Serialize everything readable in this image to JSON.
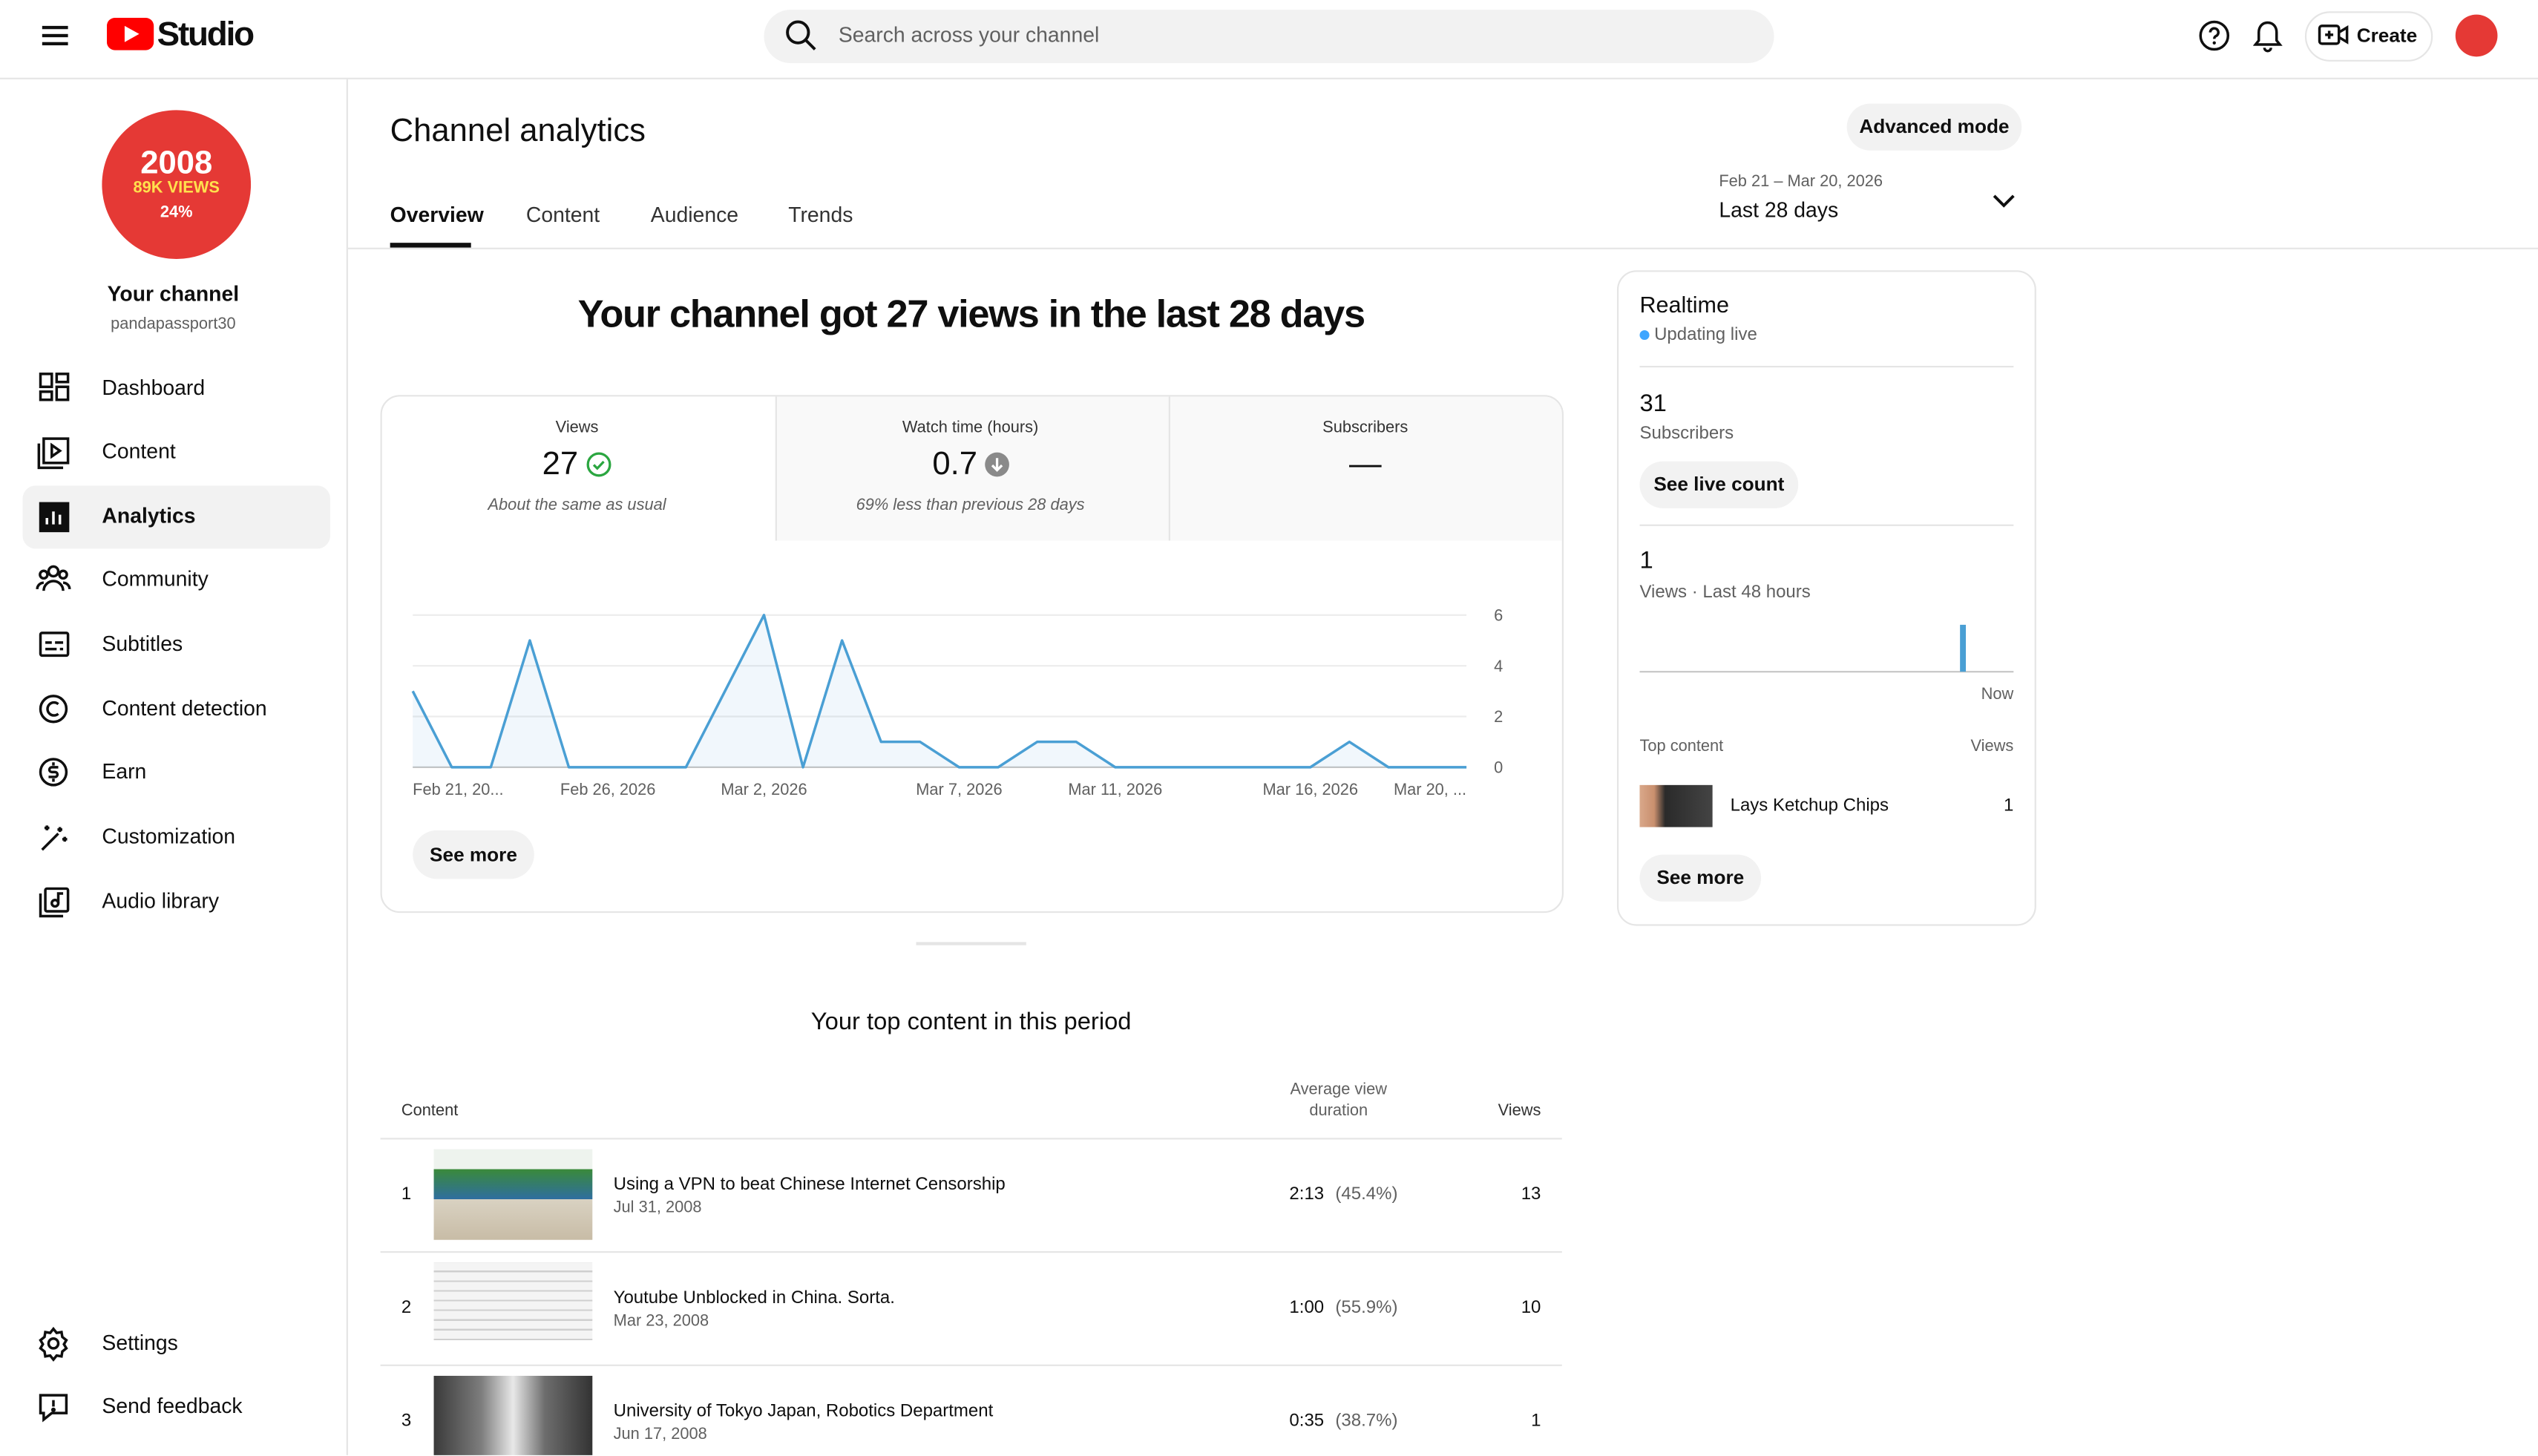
{
  "header": {
    "logo_text": "Studio",
    "search_placeholder": "Search across your channel",
    "create": "Create"
  },
  "sidebar": {
    "avatar": {
      "line1": "2008",
      "line2": "89K VIEWS",
      "line3": "24%"
    },
    "channel_title": "Your channel",
    "channel_handle": "pandapassport30",
    "nav": [
      "Dashboard",
      "Content",
      "Analytics",
      "Community",
      "Subtitles",
      "Content detection",
      "Earn",
      "Customization",
      "Audio library"
    ],
    "footer_nav": [
      "Settings",
      "Send feedback"
    ]
  },
  "page": {
    "title": "Channel analytics",
    "advanced_mode": "Advanced mode",
    "tabs": [
      "Overview",
      "Content",
      "Audience",
      "Trends"
    ],
    "date_range": "Feb 21 – Mar 20, 2026",
    "period": "Last 28 days"
  },
  "overview": {
    "headline": "Your channel got 27 views in the last 28 days",
    "metrics": [
      {
        "label": "Views",
        "value": 27,
        "note": "About the same as usual"
      },
      {
        "label": "Watch time (hours)",
        "value": 0.7,
        "note": "69% less than previous 28 days"
      },
      {
        "label": "Subscribers",
        "value": "—"
      }
    ],
    "see_more": "See more"
  },
  "chart_data": {
    "type": "line",
    "color": "#4a9fd4",
    "categories": [
      "Feb 21, 20...",
      null,
      null,
      null,
      null,
      "Feb 26, 2026",
      null,
      null,
      null,
      "Mar 2, 2026",
      null,
      null,
      null,
      null,
      "Mar 7, 2026",
      null,
      null,
      null,
      "Mar 11, 2026",
      null,
      null,
      null,
      null,
      "Mar 16, 2026",
      null,
      null,
      null,
      "Mar 20, ..."
    ],
    "values": [
      3,
      0,
      0,
      5,
      0,
      0,
      0,
      0,
      3,
      6,
      0,
      5,
      1,
      1,
      0,
      0,
      1,
      1,
      0,
      0,
      0,
      0,
      0,
      0,
      1,
      0,
      0,
      0
    ],
    "ylim": [
      0,
      6
    ],
    "yticks": [
      0,
      2,
      4,
      6
    ],
    "grid": true
  },
  "realtime": {
    "title": "Realtime",
    "status": "Updating live",
    "subscribers": 31,
    "subscribers_label": "Subscribers",
    "see_live_count": "See live count",
    "views": 1,
    "views_label": "Views · Last 48 hours",
    "chart": {
      "type": "bar",
      "color": "#4a9fd4",
      "values": [
        0,
        0,
        0,
        0,
        0,
        0,
        0,
        0,
        0,
        0,
        0,
        0,
        0,
        0,
        0,
        0,
        0,
        0,
        0,
        0,
        0,
        0,
        0,
        0,
        0,
        0,
        0,
        0,
        0,
        0,
        0,
        0,
        0,
        0,
        0,
        0,
        0,
        0,
        0,
        0,
        0,
        1,
        0,
        0,
        0,
        0,
        0,
        0
      ],
      "end_label": "Now"
    },
    "top_content_label": "Top content",
    "views_column": "Views",
    "top_item": {
      "title": "Lays Ketchup Chips",
      "views": 1
    },
    "see_more": "See more"
  },
  "top_content": {
    "title": "Your top content in this period",
    "columns": {
      "content": "Content",
      "duration": "Average view duration",
      "views": "Views"
    },
    "rows": [
      {
        "rank": 1,
        "title": "Using a VPN to beat Chinese Internet Censorship",
        "date": "Jul 31, 2008",
        "duration": "2:13",
        "percent": "(45.4%)",
        "views": 13
      },
      {
        "rank": 2,
        "title": "Youtube Unblocked in China. Sorta.",
        "date": "Mar 23, 2008",
        "duration": "1:00",
        "percent": "(55.9%)",
        "views": 10
      },
      {
        "rank": 3,
        "title": "University of Tokyo Japan, Robotics Department",
        "date": "Jun 17, 2008",
        "duration": "0:35",
        "percent": "(38.7%)",
        "views": 1
      }
    ]
  }
}
